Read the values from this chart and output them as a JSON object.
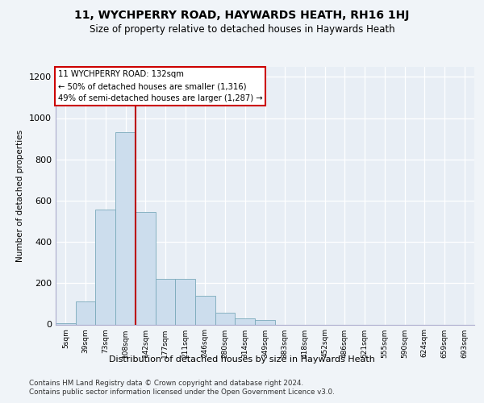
{
  "title1": "11, WYCHPERRY ROAD, HAYWARDS HEATH, RH16 1HJ",
  "title2": "Size of property relative to detached houses in Haywards Heath",
  "xlabel": "Distribution of detached houses by size in Haywards Heath",
  "ylabel": "Number of detached properties",
  "bin_labels": [
    "5sqm",
    "39sqm",
    "73sqm",
    "108sqm",
    "142sqm",
    "177sqm",
    "211sqm",
    "246sqm",
    "280sqm",
    "314sqm",
    "349sqm",
    "383sqm",
    "418sqm",
    "452sqm",
    "486sqm",
    "521sqm",
    "555sqm",
    "590sqm",
    "624sqm",
    "659sqm",
    "693sqm"
  ],
  "bar_values": [
    5,
    110,
    555,
    930,
    545,
    220,
    220,
    140,
    55,
    30,
    20,
    0,
    0,
    0,
    0,
    0,
    0,
    0,
    0,
    0,
    0
  ],
  "bar_color": "#ccdded",
  "bar_edge_color": "#7aaabb",
  "vline_color": "#bb0000",
  "annotation_text": "11 WYCHPERRY ROAD: 132sqm\n← 50% of detached houses are smaller (1,316)\n49% of semi-detached houses are larger (1,287) →",
  "annotation_box_color": "#ffffff",
  "annotation_box_edge": "#cc0000",
  "ylim": [
    0,
    1250
  ],
  "yticks": [
    0,
    200,
    400,
    600,
    800,
    1000,
    1200
  ],
  "footer1": "Contains HM Land Registry data © Crown copyright and database right 2024.",
  "footer2": "Contains public sector information licensed under the Open Government Licence v3.0.",
  "bg_color": "#f0f4f8",
  "plot_bg_color": "#e8eef5"
}
